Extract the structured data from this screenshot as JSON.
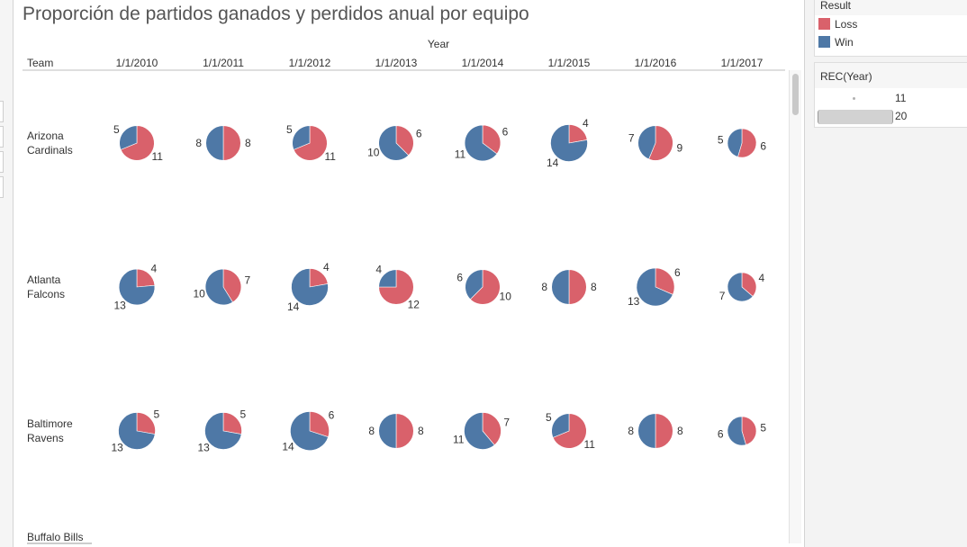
{
  "title": "Proporción de partidos ganados y perdidos anual por equipo",
  "colors": {
    "loss": "#d9616b",
    "win": "#4e78a6"
  },
  "legend_result": {
    "title": "Result",
    "items": [
      {
        "label": "Loss",
        "color": "#d9616b"
      },
      {
        "label": "Win",
        "color": "#4e78a6"
      }
    ]
  },
  "legend_size": {
    "title": "REC(Year)",
    "min_label": "11",
    "max_label": "20"
  },
  "chart_data": {
    "type": "pie",
    "column_header": "Year",
    "row_header": "Team",
    "years": [
      "1/1/2010",
      "1/1/2011",
      "1/1/2012",
      "1/1/2013",
      "1/1/2014",
      "1/1/2015",
      "1/1/2016",
      "1/1/2017"
    ],
    "teams": [
      {
        "name_lines": [
          "Arizona",
          "Cardinals"
        ],
        "wins": [
          5,
          8,
          5,
          10,
          11,
          14,
          7,
          5
        ],
        "losses": [
          11,
          8,
          11,
          6,
          6,
          4,
          9,
          6
        ]
      },
      {
        "name_lines": [
          "Atlanta",
          "Falcons"
        ],
        "wins": [
          13,
          10,
          14,
          4,
          6,
          8,
          13,
          7
        ],
        "losses": [
          4,
          7,
          4,
          12,
          10,
          8,
          6,
          4
        ]
      },
      {
        "name_lines": [
          "Baltimore",
          "Ravens"
        ],
        "wins": [
          13,
          13,
          14,
          8,
          11,
          5,
          8,
          6
        ],
        "losses": [
          5,
          5,
          6,
          8,
          7,
          11,
          8,
          5
        ]
      },
      {
        "name_lines": [
          "Buffalo Bills"
        ],
        "wins": [],
        "losses": []
      }
    ]
  }
}
